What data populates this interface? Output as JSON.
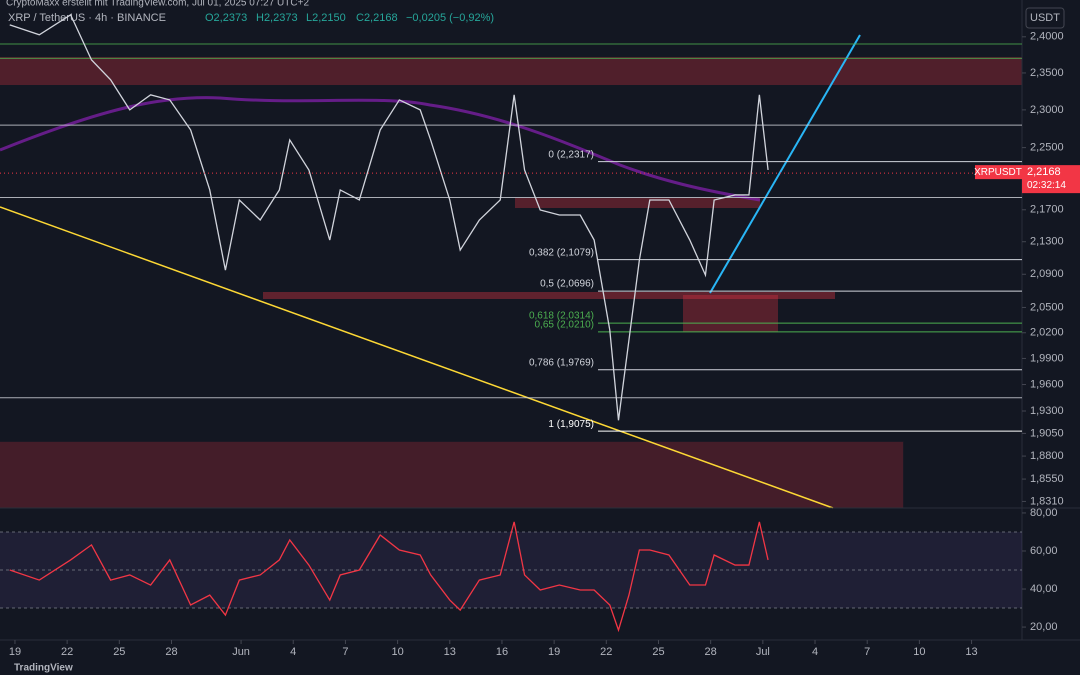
{
  "header": {
    "watermark": "CryptoMaxx erstellt mit TradingView.com, Jul 01, 2025 07:27 UTC+2",
    "symbol": "XRP / TetherUS · 4h · BINANCE",
    "open": "O2,2373",
    "high": "H2,2373",
    "low": "L2,2150",
    "close": "C2,2168",
    "change": "−0,0205 (−0,92%)",
    "currency": "USDT",
    "logo": "TradingView"
  },
  "chart_data": [
    {
      "type": "line",
      "log_scale": true,
      "grid": false,
      "series": [
        {
          "name": "XRPUSDT",
          "color": "#d1d4dc",
          "x": [
            -0.3,
            1.4,
            3.2,
            4.4,
            5.5,
            6.6,
            7.8,
            8.9,
            10.1,
            11.2,
            12.1,
            12.9,
            14.1,
            15.2,
            15.8,
            16.9,
            18.1,
            18.7,
            19.8,
            21.0,
            22.1,
            23.3,
            23.9,
            25.0,
            25.6,
            26.7,
            27.9,
            28.7,
            29.3,
            30.2,
            31.3,
            32.5,
            33.3,
            34.2,
            34.7,
            35.3,
            35.9,
            36.5,
            37.6,
            38.8,
            39.7,
            40.2,
            41.4,
            42.2,
            42.8,
            43.3
          ],
          "values": [
            2.4168,
            2.4028,
            2.431,
            2.368,
            2.3406,
            2.3,
            2.3202,
            2.3134,
            2.2733,
            2.1952,
            2.0951,
            2.1824,
            2.1571,
            2.1952,
            2.2601,
            2.2209,
            2.1321,
            2.1952,
            2.1824,
            2.2733,
            2.3134,
            2.3,
            2.2601,
            2.1824,
            2.1197,
            2.1571,
            2.1824,
            2.3202,
            2.2209,
            2.1697,
            2.1634,
            2.1634,
            2.1321,
            2.0231,
            1.9196,
            2.0112,
            2.1073,
            2.1824,
            2.1824,
            2.1321,
            2.089,
            2.1824,
            2.1888,
            2.1888,
            2.3202,
            2.2209
          ]
        }
      ],
      "last_price": {
        "value": 2.2168,
        "label": "2,2168",
        "tag": "XRPUSDT",
        "countdown": "02:32:14"
      },
      "xlim": [
        -0.86,
        57.9
      ],
      "ylim": [
        1.824,
        2.452
      ],
      "xticks": [
        {
          "value": 0,
          "label": "19"
        },
        {
          "value": 3,
          "label": "22"
        },
        {
          "value": 6,
          "label": "25"
        },
        {
          "value": 9,
          "label": "28"
        },
        {
          "value": 13,
          "label": "Jun"
        },
        {
          "value": 16,
          "label": "4"
        },
        {
          "value": 19,
          "label": "7"
        },
        {
          "value": 22,
          "label": "10"
        },
        {
          "value": 25,
          "label": "13"
        },
        {
          "value": 28,
          "label": "16"
        },
        {
          "value": 31,
          "label": "19"
        },
        {
          "value": 34,
          "label": "22"
        },
        {
          "value": 37,
          "label": "25"
        },
        {
          "value": 40,
          "label": "28"
        },
        {
          "value": 43,
          "label": "Jul"
        },
        {
          "value": 46,
          "label": "4"
        },
        {
          "value": 49,
          "label": "7"
        },
        {
          "value": 52,
          "label": "10"
        },
        {
          "value": 55,
          "label": "13"
        }
      ],
      "yticks": [
        {
          "value": 2.4,
          "label": "2,4000"
        },
        {
          "value": 2.35,
          "label": "2,3500"
        },
        {
          "value": 2.3,
          "label": "2,3000"
        },
        {
          "value": 2.25,
          "label": "2,2500"
        },
        {
          "value": 2.17,
          "label": "2,1700"
        },
        {
          "value": 2.13,
          "label": "2,1300"
        },
        {
          "value": 2.09,
          "label": "2,0900"
        },
        {
          "value": 2.05,
          "label": "2,0500"
        },
        {
          "value": 2.02,
          "label": "2,0200"
        },
        {
          "value": 1.99,
          "label": "1,9900"
        },
        {
          "value": 1.96,
          "label": "1,9600"
        },
        {
          "value": 1.93,
          "label": "1,9300"
        },
        {
          "value": 1.905,
          "label": "1,9050"
        },
        {
          "value": 1.88,
          "label": "1,8800"
        },
        {
          "value": 1.855,
          "label": "1,8550"
        },
        {
          "value": 1.831,
          "label": "1,8310"
        }
      ],
      "levels": [
        {
          "value": 2.39,
          "color": "#4caf50"
        },
        {
          "value": 2.37,
          "color": "#4caf50"
        },
        {
          "value": 2.2797,
          "color": "#d1d4dc"
        },
        {
          "value": 2.1856,
          "color": "#d1d4dc"
        },
        {
          "value": 1.9449,
          "color": "#d1d4dc"
        }
      ],
      "fib_levels": [
        {
          "label": "0 (2,2317)",
          "value": 2.2317,
          "color": "#d1d4dc"
        },
        {
          "label": "0,382 (2,1079)",
          "value": 2.1079,
          "color": "#d1d4dc"
        },
        {
          "label": "0,5 (2,0696)",
          "value": 2.0696,
          "color": "#d1d4dc"
        },
        {
          "label": "0,618 (2,0314)",
          "value": 2.0314,
          "color": "#4caf50"
        },
        {
          "label": "0,65 (2,0210)",
          "value": 2.021,
          "color": "#4caf50"
        },
        {
          "label": "0,786 (1,9769)",
          "value": 1.9769,
          "color": "#d1d4dc"
        },
        {
          "label": "1 (1,9075)",
          "value": 1.9075,
          "color": "#ffffff"
        }
      ]
    },
    {
      "type": "line",
      "grid": false,
      "series": [
        {
          "color": "#f23645",
          "x": [
            -0.3,
            1.4,
            3.2,
            4.4,
            5.5,
            6.6,
            7.8,
            8.9,
            10.1,
            11.2,
            12.1,
            12.9,
            14.1,
            15.2,
            15.8,
            16.9,
            18.1,
            18.7,
            19.8,
            21.0,
            22.1,
            23.3,
            23.9,
            25.0,
            25.6,
            26.7,
            27.9,
            28.7,
            29.3,
            30.2,
            31.3,
            32.5,
            33.3,
            34.2,
            34.7,
            35.3,
            35.9,
            36.5,
            37.6,
            38.8,
            39.7,
            40.2,
            41.4,
            42.2,
            42.8,
            43.3
          ],
          "values": [
            50.0,
            44.7,
            55.3,
            63.2,
            44.7,
            47.4,
            42.1,
            55.3,
            31.6,
            36.8,
            26.3,
            44.7,
            47.4,
            55.3,
            65.8,
            52.6,
            34.2,
            47.4,
            50.0,
            68.4,
            60.5,
            57.9,
            47.4,
            34.2,
            28.9,
            44.7,
            47.4,
            75.3,
            47.4,
            39.5,
            42.1,
            39.5,
            39.5,
            31.6,
            18.4,
            36.8,
            60.5,
            60.5,
            57.9,
            42.1,
            42.1,
            57.9,
            52.6,
            52.6,
            75.3,
            55.3
          ]
        }
      ],
      "xlim": [
        -0.86,
        57.9
      ],
      "ylim": [
        13.2,
        82.6
      ],
      "band": [
        30,
        70
      ],
      "levels": [
        30,
        50,
        70
      ],
      "yticks": [
        {
          "value": 80,
          "label": "80,00"
        },
        {
          "value": 60,
          "label": "60,00"
        },
        {
          "value": 40,
          "label": "40,00"
        },
        {
          "value": 20,
          "label": "20,00"
        }
      ]
    }
  ]
}
